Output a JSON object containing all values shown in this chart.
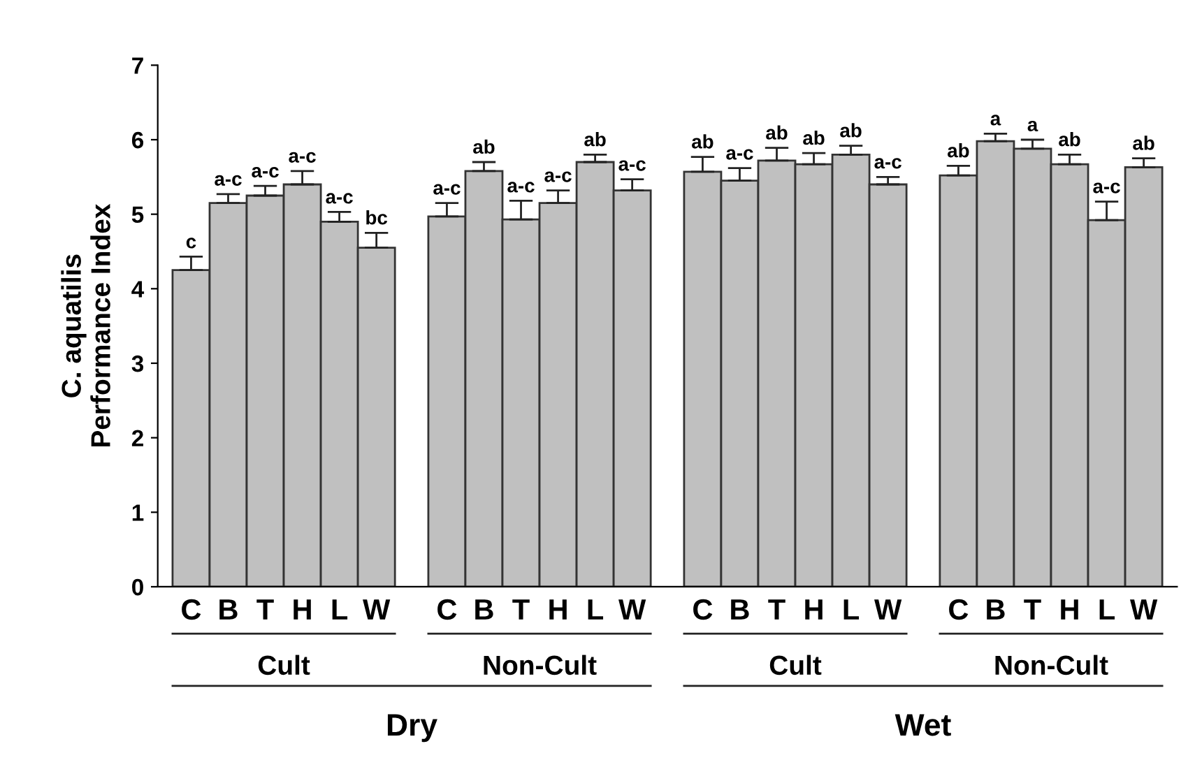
{
  "chart_data": {
    "type": "bar",
    "ylabel": "C. aquatilis\nPerformance Index",
    "categories": [
      "C",
      "B",
      "T",
      "H",
      "L",
      "W",
      "C",
      "B",
      "T",
      "H",
      "L",
      "W",
      "C",
      "B",
      "T",
      "H",
      "L",
      "W",
      "C",
      "B",
      "T",
      "H",
      "L",
      "W"
    ],
    "values": [
      4.25,
      5.15,
      5.25,
      5.4,
      4.9,
      4.55,
      4.97,
      5.58,
      4.93,
      5.15,
      5.7,
      5.32,
      5.57,
      5.45,
      5.72,
      5.67,
      5.8,
      5.4,
      5.52,
      5.98,
      5.88,
      5.67,
      4.92,
      5.63
    ],
    "errors": [
      0.18,
      0.12,
      0.13,
      0.18,
      0.13,
      0.2,
      0.18,
      0.12,
      0.25,
      0.17,
      0.1,
      0.15,
      0.2,
      0.17,
      0.17,
      0.15,
      0.12,
      0.1,
      0.13,
      0.1,
      0.12,
      0.13,
      0.25,
      0.12
    ],
    "value_labels": [
      "c",
      "a-c",
      "a-c",
      "a-c",
      "a-c",
      "bc",
      "a-c",
      "ab",
      "a-c",
      "a-c",
      "ab",
      "a-c",
      "ab",
      "a-c",
      "ab",
      "ab",
      "ab",
      "a-c",
      "ab",
      "a",
      "a",
      "ab",
      "a-c",
      "ab"
    ],
    "color": "#c0c0c0",
    "ylim": [
      0,
      7
    ],
    "yticks": [
      0,
      1,
      2,
      3,
      4,
      5,
      6,
      7
    ],
    "annotations": [
      "Cult",
      "Non-Cult",
      "Cult",
      "Non-Cult",
      "Dry",
      "Wet"
    ],
    "grid": false,
    "legend": false
  }
}
